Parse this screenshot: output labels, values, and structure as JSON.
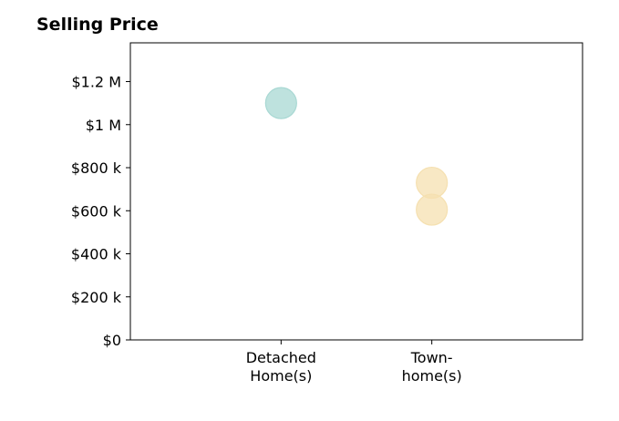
{
  "chart_data": {
    "type": "scatter",
    "title": "Selling Price",
    "xlabel": "",
    "ylabel": "",
    "categories": [
      [
        "Detached",
        "Home(s)"
      ],
      [
        "Town-",
        "home(s)"
      ]
    ],
    "points": [
      {
        "category": 0,
        "y": 1100000,
        "color": "#a8d8d3"
      },
      {
        "category": 1,
        "y": 730000,
        "color": "#f5e0b0"
      },
      {
        "category": 1,
        "y": 605000,
        "color": "#f5e0b0"
      }
    ],
    "yticks": [
      {
        "value": 0,
        "label": "$0"
      },
      {
        "value": 200000,
        "label": "$200 k"
      },
      {
        "value": 400000,
        "label": "$400 k"
      },
      {
        "value": 600000,
        "label": "$600 k"
      },
      {
        "value": 800000,
        "label": "$800 k"
      },
      {
        "value": 1000000,
        "label": "$1 M"
      },
      {
        "value": 1200000,
        "label": "$1.2 M"
      }
    ],
    "ylim": [
      0,
      1380000
    ],
    "xlim": [
      -1,
      2
    ],
    "grid": false,
    "legend": "none"
  }
}
